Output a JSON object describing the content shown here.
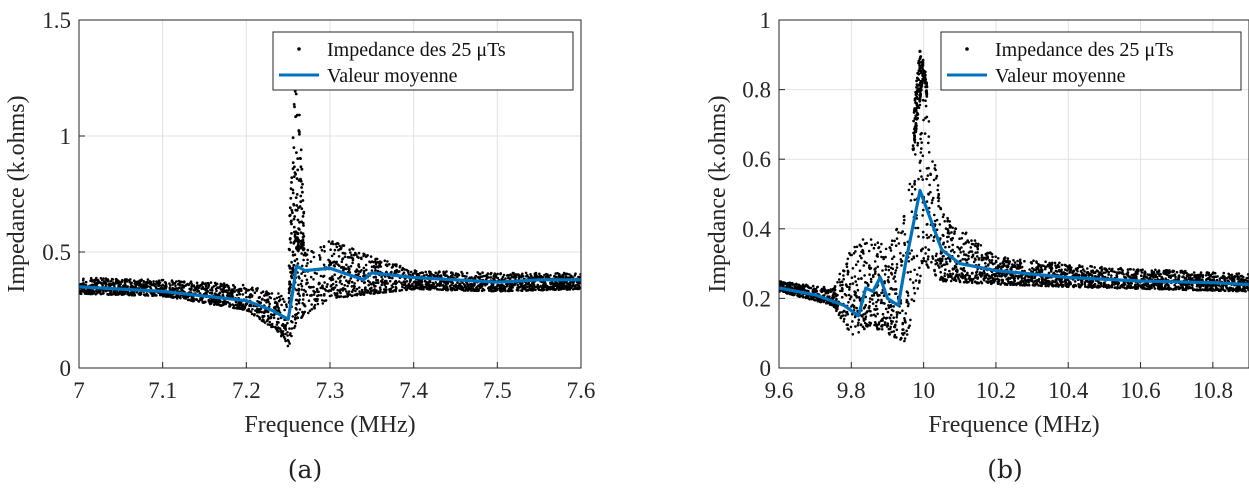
{
  "chart_data": [
    {
      "type": "line",
      "panel_label": "(a)",
      "xlabel": "Frequence (MHz)",
      "ylabel": "Impedance (k.ohms)",
      "xlim": [
        7.0,
        7.6
      ],
      "ylim": [
        0,
        1.5
      ],
      "xticks": [
        "7",
        "7.1",
        "7.2",
        "7.3",
        "7.4",
        "7.5",
        "7.6"
      ],
      "yticks": [
        "0",
        "0.5",
        "1",
        "1.5"
      ],
      "grid": true,
      "legend_position": "top-right",
      "legend": [
        {
          "label": "Impedance des 25 μTs",
          "marker": "dot",
          "color": "#000000"
        },
        {
          "label": "Valeur moyenne",
          "marker": "line",
          "color": "#0072BD"
        }
      ],
      "series": [
        {
          "name": "Valeur moyenne",
          "color": "#0072BD",
          "x": [
            7.0,
            7.1,
            7.2,
            7.23,
            7.25,
            7.255,
            7.26,
            7.27,
            7.3,
            7.34,
            7.35,
            7.4,
            7.5,
            7.55,
            7.6
          ],
          "y": [
            0.35,
            0.33,
            0.29,
            0.25,
            0.21,
            0.32,
            0.44,
            0.42,
            0.43,
            0.38,
            0.41,
            0.39,
            0.37,
            0.38,
            0.38
          ]
        }
      ],
      "scatter_envelope": {
        "name": "Impedance des 25 μTs",
        "color": "#000000",
        "baseline_x": [
          7.0,
          7.1,
          7.2,
          7.24,
          7.25,
          7.26,
          7.3,
          7.4,
          7.5,
          7.6
        ],
        "baseline_low": [
          0.32,
          0.31,
          0.25,
          0.15,
          0.08,
          0.2,
          0.3,
          0.34,
          0.33,
          0.34
        ],
        "baseline_high": [
          0.39,
          0.38,
          0.36,
          0.32,
          0.3,
          0.5,
          0.55,
          0.42,
          0.41,
          0.41
        ],
        "peak": {
          "x": 7.26,
          "y": 1.35
        }
      }
    },
    {
      "type": "line",
      "panel_label": "(b)",
      "xlabel": "Frequence (MHz)",
      "ylabel": "Impedance (k.ohms)",
      "xlim": [
        9.6,
        10.9
      ],
      "ylim": [
        0,
        1
      ],
      "xticks": [
        "9.6",
        "9.8",
        "10",
        "10.2",
        "10.4",
        "10.6",
        "10.8"
      ],
      "yticks": [
        "0",
        "0.2",
        "0.4",
        "0.6",
        "0.8",
        "1"
      ],
      "grid": true,
      "legend_position": "top-right",
      "legend": [
        {
          "label": "Impedance des 25 μTs",
          "marker": "dot",
          "color": "#000000"
        },
        {
          "label": "Valeur moyenne",
          "marker": "line",
          "color": "#0072BD"
        }
      ],
      "series": [
        {
          "name": "Valeur moyenne",
          "color": "#0072BD",
          "x": [
            9.6,
            9.7,
            9.78,
            9.82,
            9.84,
            9.86,
            9.88,
            9.9,
            9.93,
            9.95,
            9.99,
            10.05,
            10.1,
            10.2,
            10.4,
            10.6,
            10.8,
            10.9
          ],
          "y": [
            0.23,
            0.21,
            0.18,
            0.15,
            0.23,
            0.22,
            0.26,
            0.2,
            0.18,
            0.3,
            0.51,
            0.34,
            0.3,
            0.28,
            0.26,
            0.25,
            0.245,
            0.24
          ]
        }
      ],
      "scatter_envelope": {
        "name": "Impedance des 25 μTs",
        "color": "#000000",
        "baseline_x": [
          9.6,
          9.75,
          9.8,
          9.85,
          9.9,
          9.95,
          10.0,
          10.05,
          10.2,
          10.5,
          10.9
        ],
        "baseline_low": [
          0.22,
          0.18,
          0.09,
          0.12,
          0.1,
          0.07,
          0.3,
          0.25,
          0.24,
          0.23,
          0.22
        ],
        "baseline_high": [
          0.25,
          0.23,
          0.35,
          0.38,
          0.35,
          0.45,
          0.85,
          0.45,
          0.32,
          0.29,
          0.27
        ],
        "peak": {
          "x": 9.99,
          "y": 0.91
        }
      }
    }
  ]
}
